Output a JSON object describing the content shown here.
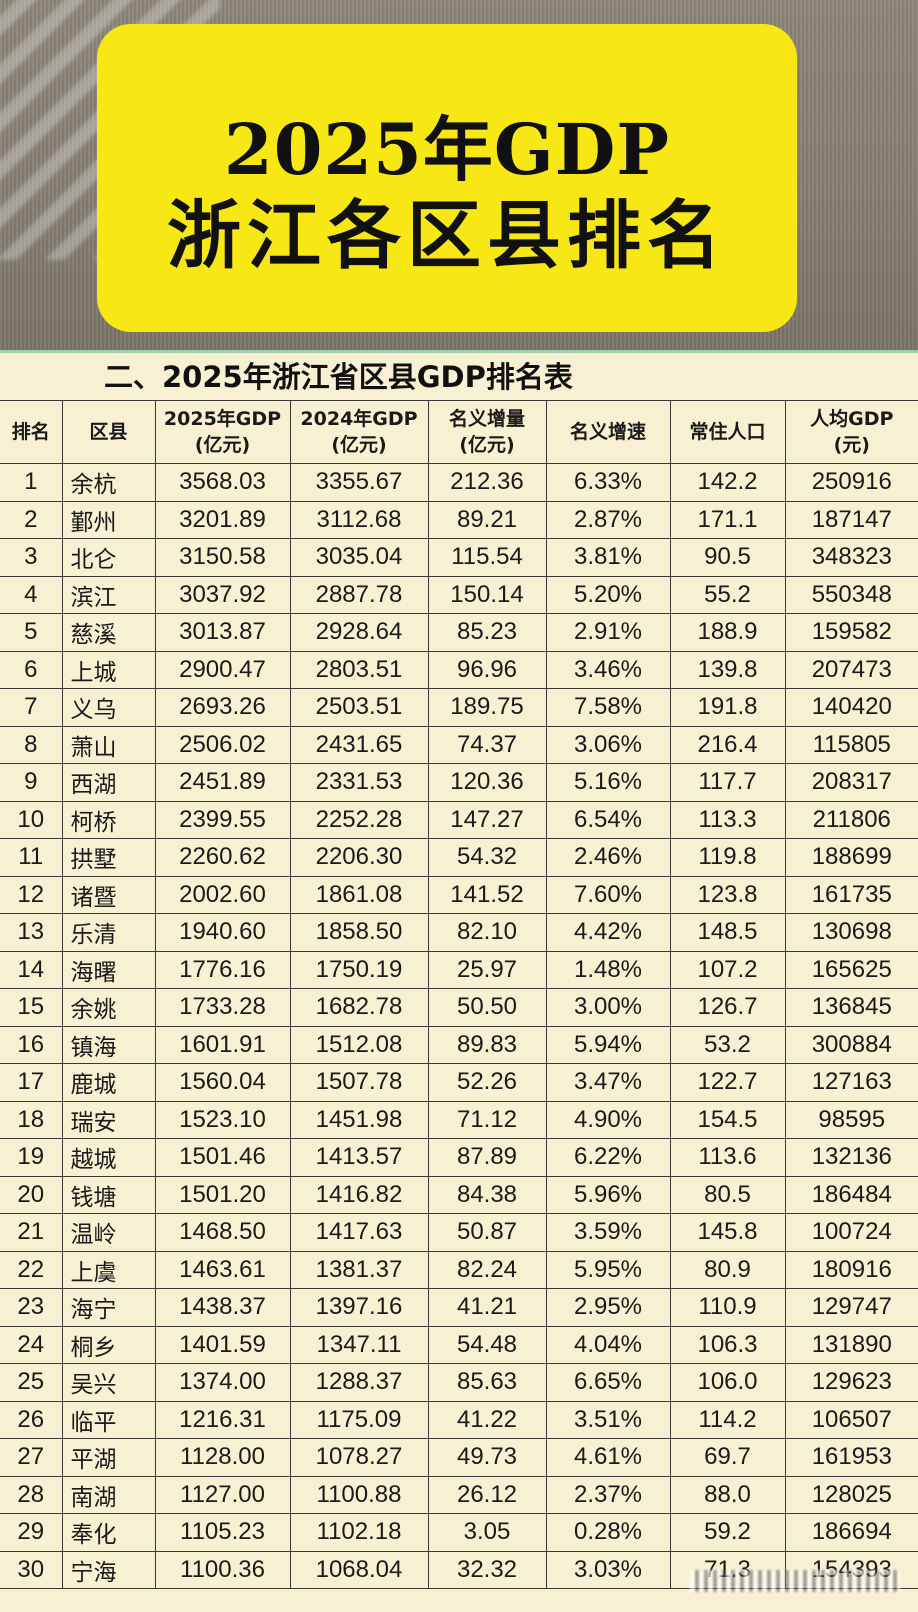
{
  "banner": {
    "line1": "2025年GDP",
    "line2": "浙江各区县排名",
    "color": "#f7e715"
  },
  "table": {
    "title": "二、2025年浙江省区县GDP排名表",
    "headers": [
      {
        "line1": "排名",
        "line2": ""
      },
      {
        "line1": "区县",
        "line2": ""
      },
      {
        "line1": "2025年GDP",
        "line2": "(亿元)"
      },
      {
        "line1": "2024年GDP",
        "line2": "(亿元)"
      },
      {
        "line1": "名义增量",
        "line2": "(亿元)"
      },
      {
        "line1": "名义增速",
        "line2": ""
      },
      {
        "line1": "常住人口",
        "line2": ""
      },
      {
        "line1": "人均GDP",
        "line2": "(元)"
      }
    ],
    "rows": [
      [
        "1",
        "余杭",
        "3568.03",
        "3355.67",
        "212.36",
        "6.33%",
        "142.2",
        "250916"
      ],
      [
        "2",
        "鄞州",
        "3201.89",
        "3112.68",
        "89.21",
        "2.87%",
        "171.1",
        "187147"
      ],
      [
        "3",
        "北仑",
        "3150.58",
        "3035.04",
        "115.54",
        "3.81%",
        "90.5",
        "348323"
      ],
      [
        "4",
        "滨江",
        "3037.92",
        "2887.78",
        "150.14",
        "5.20%",
        "55.2",
        "550348"
      ],
      [
        "5",
        "慈溪",
        "3013.87",
        "2928.64",
        "85.23",
        "2.91%",
        "188.9",
        "159582"
      ],
      [
        "6",
        "上城",
        "2900.47",
        "2803.51",
        "96.96",
        "3.46%",
        "139.8",
        "207473"
      ],
      [
        "7",
        "义乌",
        "2693.26",
        "2503.51",
        "189.75",
        "7.58%",
        "191.8",
        "140420"
      ],
      [
        "8",
        "萧山",
        "2506.02",
        "2431.65",
        "74.37",
        "3.06%",
        "216.4",
        "115805"
      ],
      [
        "9",
        "西湖",
        "2451.89",
        "2331.53",
        "120.36",
        "5.16%",
        "117.7",
        "208317"
      ],
      [
        "10",
        "柯桥",
        "2399.55",
        "2252.28",
        "147.27",
        "6.54%",
        "113.3",
        "211806"
      ],
      [
        "11",
        "拱墅",
        "2260.62",
        "2206.30",
        "54.32",
        "2.46%",
        "119.8",
        "188699"
      ],
      [
        "12",
        "诸暨",
        "2002.60",
        "1861.08",
        "141.52",
        "7.60%",
        "123.8",
        "161735"
      ],
      [
        "13",
        "乐清",
        "1940.60",
        "1858.50",
        "82.10",
        "4.42%",
        "148.5",
        "130698"
      ],
      [
        "14",
        "海曙",
        "1776.16",
        "1750.19",
        "25.97",
        "1.48%",
        "107.2",
        "165625"
      ],
      [
        "15",
        "余姚",
        "1733.28",
        "1682.78",
        "50.50",
        "3.00%",
        "126.7",
        "136845"
      ],
      [
        "16",
        "镇海",
        "1601.91",
        "1512.08",
        "89.83",
        "5.94%",
        "53.2",
        "300884"
      ],
      [
        "17",
        "鹿城",
        "1560.04",
        "1507.78",
        "52.26",
        "3.47%",
        "122.7",
        "127163"
      ],
      [
        "18",
        "瑞安",
        "1523.10",
        "1451.98",
        "71.12",
        "4.90%",
        "154.5",
        "98595"
      ],
      [
        "19",
        "越城",
        "1501.46",
        "1413.57",
        "87.89",
        "6.22%",
        "113.6",
        "132136"
      ],
      [
        "20",
        "钱塘",
        "1501.20",
        "1416.82",
        "84.38",
        "5.96%",
        "80.5",
        "186484"
      ],
      [
        "21",
        "温岭",
        "1468.50",
        "1417.63",
        "50.87",
        "3.59%",
        "145.8",
        "100724"
      ],
      [
        "22",
        "上虞",
        "1463.61",
        "1381.37",
        "82.24",
        "5.95%",
        "80.9",
        "180916"
      ],
      [
        "23",
        "海宁",
        "1438.37",
        "1397.16",
        "41.21",
        "2.95%",
        "110.9",
        "129747"
      ],
      [
        "24",
        "桐乡",
        "1401.59",
        "1347.11",
        "54.48",
        "4.04%",
        "106.3",
        "131890"
      ],
      [
        "25",
        "吴兴",
        "1374.00",
        "1288.37",
        "85.63",
        "6.65%",
        "106.0",
        "129623"
      ],
      [
        "26",
        "临平",
        "1216.31",
        "1175.09",
        "41.22",
        "3.51%",
        "114.2",
        "106507"
      ],
      [
        "27",
        "平湖",
        "1128.00",
        "1078.27",
        "49.73",
        "4.61%",
        "69.7",
        "161953"
      ],
      [
        "28",
        "南湖",
        "1127.00",
        "1100.88",
        "26.12",
        "2.37%",
        "88.0",
        "128025"
      ],
      [
        "29",
        "奉化",
        "1105.23",
        "1102.18",
        "3.05",
        "0.28%",
        "59.2",
        "186694"
      ],
      [
        "30",
        "宁海",
        "1100.36",
        "1068.04",
        "32.32",
        "3.03%",
        "71.3",
        "154393"
      ]
    ]
  }
}
